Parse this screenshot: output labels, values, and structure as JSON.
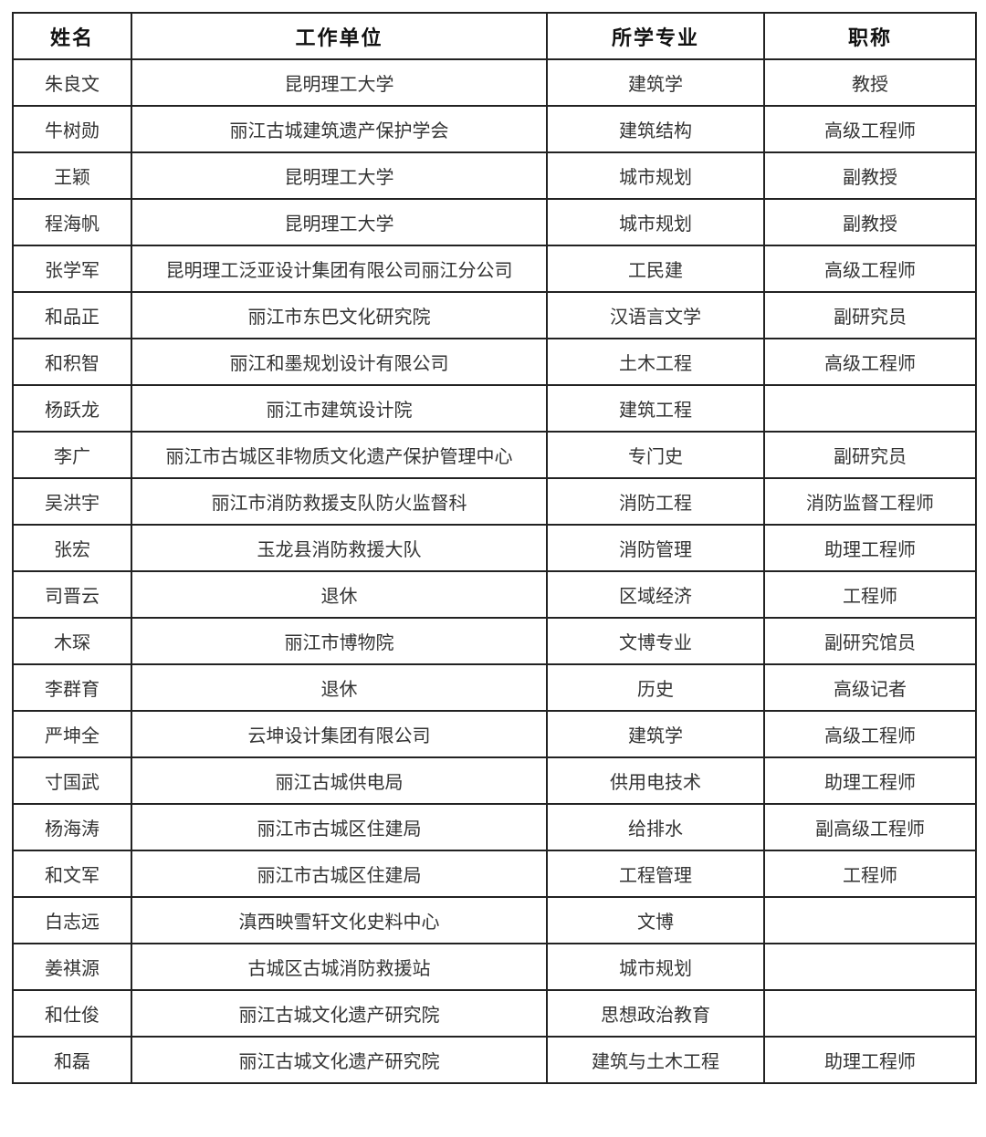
{
  "table": {
    "headers": [
      "姓名",
      "工作单位",
      "所学专业",
      "职称"
    ],
    "rows": [
      [
        "朱良文",
        "昆明理工大学",
        "建筑学",
        "教授"
      ],
      [
        "牛树勋",
        "丽江古城建筑遗产保护学会",
        "建筑结构",
        "高级工程师"
      ],
      [
        "王颖",
        "昆明理工大学",
        "城市规划",
        "副教授"
      ],
      [
        "程海帆",
        "昆明理工大学",
        "城市规划",
        "副教授"
      ],
      [
        "张学军",
        "昆明理工泛亚设计集团有限公司丽江分公司",
        "工民建",
        "高级工程师"
      ],
      [
        "和品正",
        "丽江市东巴文化研究院",
        "汉语言文学",
        "副研究员"
      ],
      [
        "和积智",
        "丽江和墨规划设计有限公司",
        "土木工程",
        "高级工程师"
      ],
      [
        "杨跃龙",
        "丽江市建筑设计院",
        "建筑工程",
        ""
      ],
      [
        "李广",
        "丽江市古城区非物质文化遗产保护管理中心",
        "专门史",
        "副研究员"
      ],
      [
        "吴洪宇",
        "丽江市消防救援支队防火监督科",
        "消防工程",
        "消防监督工程师"
      ],
      [
        "张宏",
        "玉龙县消防救援大队",
        "消防管理",
        "助理工程师"
      ],
      [
        "司晋云",
        "退休",
        "区域经济",
        "工程师"
      ],
      [
        "木琛",
        "丽江市博物院",
        "文博专业",
        "副研究馆员"
      ],
      [
        "李群育",
        "退休",
        "历史",
        "高级记者"
      ],
      [
        "严坤全",
        "云坤设计集团有限公司",
        "建筑学",
        "高级工程师"
      ],
      [
        "寸国武",
        "丽江古城供电局",
        "供用电技术",
        "助理工程师"
      ],
      [
        "杨海涛",
        "丽江市古城区住建局",
        "给排水",
        "副高级工程师"
      ],
      [
        "和文军",
        "丽江市古城区住建局",
        "工程管理",
        "工程师"
      ],
      [
        "白志远",
        "滇西映雪轩文化史料中心",
        "文博",
        ""
      ],
      [
        "姜祺源",
        "古城区古城消防救援站",
        "城市规划",
        ""
      ],
      [
        "和仕俊",
        "丽江古城文化遗产研究院",
        "思想政治教育",
        ""
      ],
      [
        "和磊",
        "丽江古城文化遗产研究院",
        "建筑与土木工程",
        "助理工程师"
      ]
    ]
  }
}
